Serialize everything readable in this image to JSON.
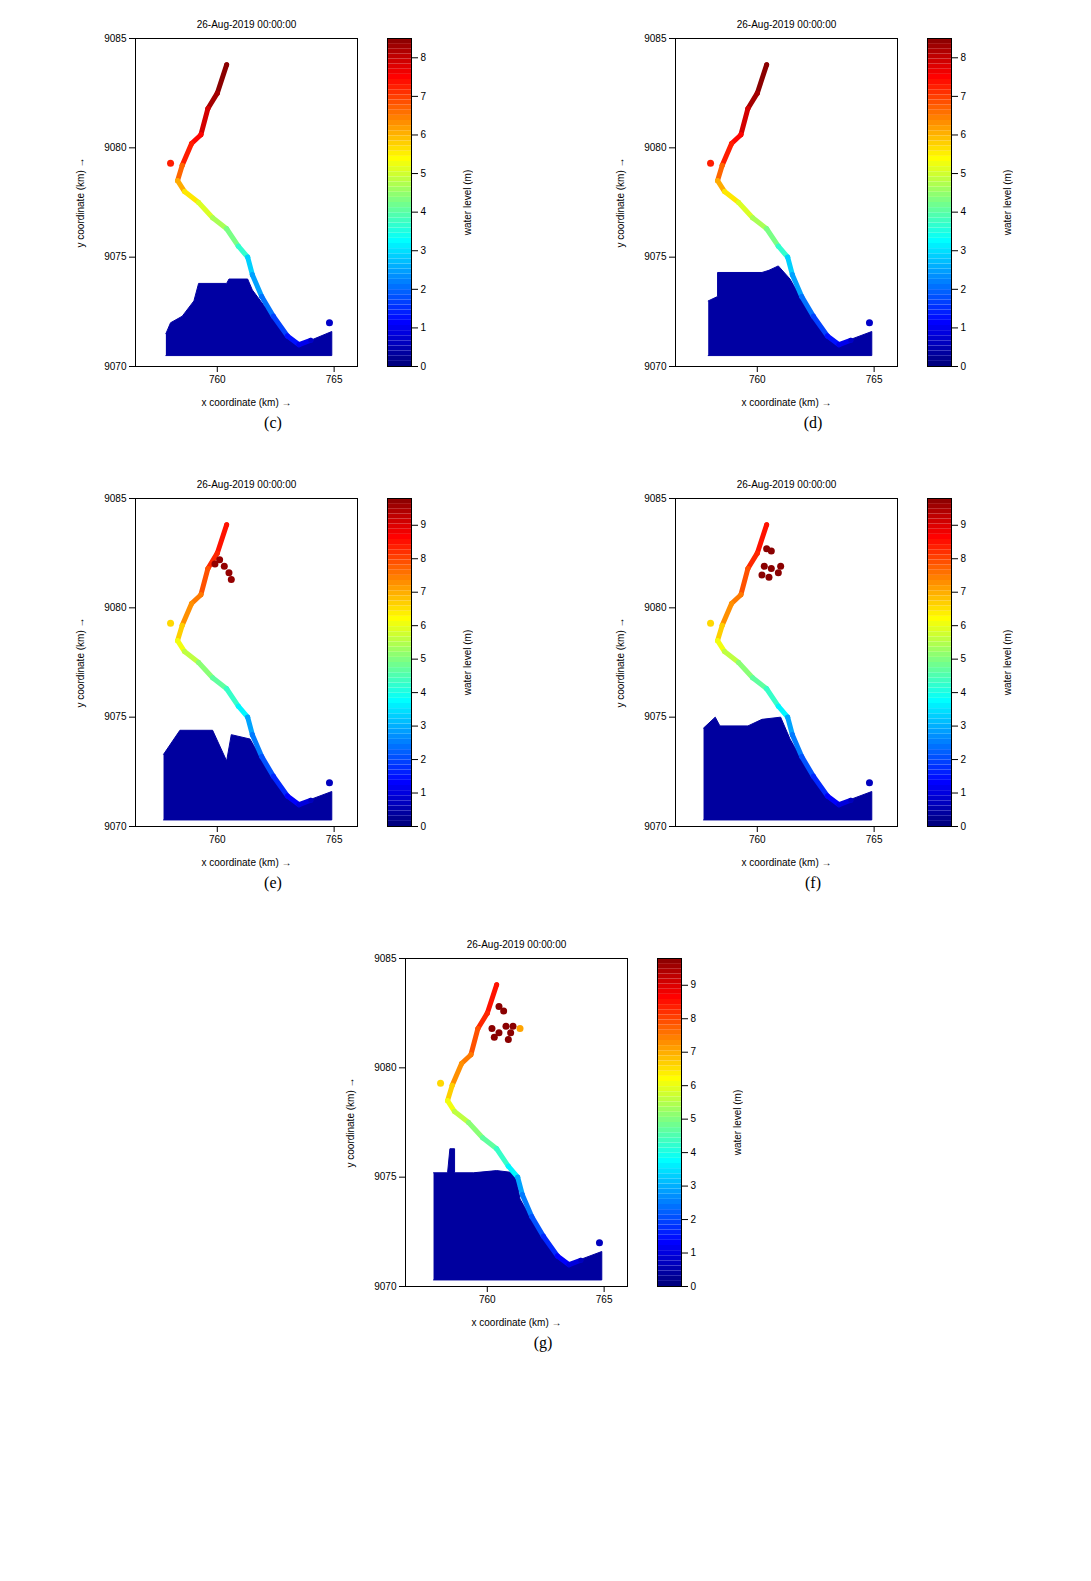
{
  "chart_data": [
    {
      "type": "scatter",
      "title": "26-Aug-2019 00:00:00",
      "caption": "(c)",
      "x_label": "x coordinate (km) →",
      "y_label": "y coordinate (km) →",
      "xlim": [
        756.5,
        766
      ],
      "xticks": [
        760,
        765
      ],
      "ylim": [
        9070,
        9085
      ],
      "yticks": [
        9070,
        9075,
        9080,
        9085
      ],
      "color_label": "water level (m)",
      "clim": [
        0,
        8.5
      ],
      "cticks": [
        0,
        1,
        2,
        3,
        4,
        5,
        6,
        7,
        8
      ],
      "river": {
        "x": [
          760.4,
          760.0,
          759.6,
          759.3,
          758.9,
          758.5,
          758.3,
          758.6,
          759.2,
          759.8,
          760.4,
          760.9,
          761.3,
          761.5,
          761.9,
          762.4,
          763.0,
          763.5,
          764.0
        ],
        "y": [
          9083.8,
          9082.5,
          9081.8,
          9080.6,
          9080.2,
          9079.2,
          9078.5,
          9078.0,
          9077.5,
          9076.8,
          9076.3,
          9075.5,
          9075.0,
          9074.2,
          9073.2,
          9072.3,
          9071.4,
          9071.0,
          9071.2
        ],
        "level": [
          8.4,
          8.2,
          7.8,
          7.4,
          7.2,
          6.6,
          6.0,
          5.5,
          5.0,
          4.6,
          4.2,
          3.6,
          2.8,
          2.4,
          2.0,
          1.6,
          1.2,
          0.9,
          0.6
        ]
      },
      "flood_areas": [
        {
          "level": 0.3,
          "x": [
            757.8,
            764.9,
            764.9,
            764.0,
            763.4,
            762.8,
            762.2,
            761.5,
            761.3,
            760.5,
            760.4,
            759.2,
            759.0,
            758.5,
            758.0,
            757.8
          ],
          "y": [
            9070.5,
            9070.5,
            9071.6,
            9071.2,
            9071.0,
            9071.6,
            9072.5,
            9073.5,
            9074.0,
            9074.0,
            9073.8,
            9073.8,
            9073.0,
            9072.3,
            9072.0,
            9071.5
          ]
        }
      ],
      "spots": {
        "x": [
          758.0,
          764.8
        ],
        "y": [
          9079.3,
          9072.0
        ],
        "level": [
          7.2,
          0.6
        ]
      }
    },
    {
      "type": "scatter",
      "title": "26-Aug-2019 00:00:00",
      "caption": "(d)",
      "x_label": "x coordinate (km) →",
      "y_label": "y coordinate (km) →",
      "xlim": [
        756.5,
        766
      ],
      "xticks": [
        760,
        765
      ],
      "ylim": [
        9070,
        9085
      ],
      "yticks": [
        9070,
        9075,
        9080,
        9085
      ],
      "color_label": "water level (m)",
      "clim": [
        0,
        8.5
      ],
      "cticks": [
        0,
        1,
        2,
        3,
        4,
        5,
        6,
        7,
        8
      ],
      "river": {
        "x": [
          760.4,
          760.0,
          759.6,
          759.3,
          758.9,
          758.5,
          758.3,
          758.6,
          759.2,
          759.8,
          760.4,
          760.9,
          761.3,
          761.5,
          761.9,
          762.4,
          763.0,
          763.5,
          764.0
        ],
        "y": [
          9083.8,
          9082.5,
          9081.8,
          9080.6,
          9080.2,
          9079.2,
          9078.5,
          9078.0,
          9077.5,
          9076.8,
          9076.3,
          9075.5,
          9075.0,
          9074.2,
          9073.2,
          9072.3,
          9071.4,
          9071.0,
          9071.2
        ],
        "level": [
          8.4,
          8.2,
          7.8,
          7.4,
          7.2,
          6.6,
          6.0,
          5.5,
          5.0,
          4.6,
          4.2,
          3.6,
          2.8,
          2.4,
          2.0,
          1.6,
          1.2,
          0.9,
          0.6
        ]
      },
      "flood_areas": [
        {
          "level": 0.3,
          "x": [
            757.9,
            764.9,
            764.9,
            763.4,
            762.2,
            761.4,
            760.9,
            760.5,
            760.2,
            758.3,
            758.3,
            757.9
          ],
          "y": [
            9070.5,
            9070.5,
            9071.6,
            9071.0,
            9072.5,
            9074.0,
            9074.6,
            9074.4,
            9074.3,
            9074.3,
            9073.2,
            9073.0
          ]
        }
      ],
      "spots": {
        "x": [
          758.0,
          764.8
        ],
        "y": [
          9079.3,
          9072.0
        ],
        "level": [
          7.2,
          0.6
        ]
      }
    },
    {
      "type": "scatter",
      "title": "26-Aug-2019 00:00:00",
      "caption": "(e)",
      "x_label": "x coordinate (km) →",
      "y_label": "y coordinate (km) →",
      "xlim": [
        756.5,
        766
      ],
      "xticks": [
        760,
        765
      ],
      "ylim": [
        9070,
        9085
      ],
      "yticks": [
        9070,
        9075,
        9080,
        9085
      ],
      "color_label": "water level (m)",
      "clim": [
        0,
        9.8
      ],
      "cticks": [
        0,
        1,
        2,
        3,
        4,
        5,
        6,
        7,
        8,
        9
      ],
      "river": {
        "x": [
          760.4,
          760.0,
          759.6,
          759.3,
          758.9,
          758.5,
          758.3,
          758.6,
          759.2,
          759.8,
          760.4,
          760.9,
          761.3,
          761.5,
          761.9,
          762.4,
          763.0,
          763.5,
          764.0
        ],
        "y": [
          9083.8,
          9082.5,
          9081.8,
          9080.6,
          9080.2,
          9079.2,
          9078.5,
          9078.0,
          9077.5,
          9076.8,
          9076.3,
          9075.5,
          9075.0,
          9074.2,
          9073.2,
          9072.3,
          9071.4,
          9071.0,
          9071.2
        ],
        "level": [
          8.4,
          8.2,
          7.8,
          7.4,
          7.2,
          6.6,
          6.0,
          5.5,
          5.0,
          4.6,
          4.2,
          3.6,
          2.8,
          2.4,
          2.0,
          1.6,
          1.2,
          0.9,
          0.6
        ]
      },
      "flood_areas": [
        {
          "level": 0.3,
          "x": [
            757.7,
            764.9,
            764.9,
            763.4,
            762.2,
            761.4,
            760.6,
            760.4,
            759.8,
            758.4,
            757.7
          ],
          "y": [
            9070.3,
            9070.3,
            9071.6,
            9071.0,
            9072.5,
            9074.0,
            9074.2,
            9073.0,
            9074.4,
            9074.4,
            9073.3
          ]
        }
      ],
      "spots": {
        "x": [
          758.0,
          764.8,
          760.1,
          760.3,
          760.5,
          760.6,
          759.9
        ],
        "y": [
          9079.3,
          9072.0,
          9082.2,
          9081.9,
          9081.6,
          9081.3,
          9082.0
        ],
        "level": [
          6.5,
          0.6,
          9.6,
          9.6,
          9.6,
          9.6,
          9.6
        ]
      }
    },
    {
      "type": "scatter",
      "title": "26-Aug-2019 00:00:00",
      "caption": "(f)",
      "x_label": "x coordinate (km) →",
      "y_label": "y coordinate (km) →",
      "xlim": [
        756.5,
        766
      ],
      "xticks": [
        760,
        765
      ],
      "ylim": [
        9070,
        9085
      ],
      "yticks": [
        9070,
        9075,
        9080,
        9085
      ],
      "color_label": "water level (m)",
      "clim": [
        0,
        9.8
      ],
      "cticks": [
        0,
        1,
        2,
        3,
        4,
        5,
        6,
        7,
        8,
        9
      ],
      "river": {
        "x": [
          760.4,
          760.0,
          759.6,
          759.3,
          758.9,
          758.5,
          758.3,
          758.6,
          759.2,
          759.8,
          760.4,
          760.9,
          761.3,
          761.5,
          761.9,
          762.4,
          763.0,
          763.5,
          764.0
        ],
        "y": [
          9083.8,
          9082.5,
          9081.8,
          9080.6,
          9080.2,
          9079.2,
          9078.5,
          9078.0,
          9077.5,
          9076.8,
          9076.3,
          9075.5,
          9075.0,
          9074.2,
          9073.2,
          9072.3,
          9071.4,
          9071.0,
          9071.2
        ],
        "level": [
          8.4,
          8.2,
          7.8,
          7.4,
          7.2,
          6.6,
          6.0,
          5.5,
          5.0,
          4.6,
          4.2,
          3.6,
          2.8,
          2.4,
          2.0,
          1.6,
          1.2,
          0.9,
          0.6
        ]
      },
      "flood_areas": [
        {
          "level": 0.3,
          "x": [
            757.7,
            764.9,
            764.9,
            763.4,
            762.2,
            761.4,
            761.0,
            760.2,
            759.6,
            758.4,
            758.2,
            757.7
          ],
          "y": [
            9070.3,
            9070.3,
            9071.6,
            9071.0,
            9072.5,
            9074.0,
            9075.0,
            9074.9,
            9074.6,
            9074.6,
            9075.0,
            9074.5
          ]
        }
      ],
      "spots": {
        "x": [
          758.0,
          764.8,
          760.4,
          760.6,
          760.3,
          760.6,
          760.9,
          760.5,
          760.2,
          761.0
        ],
        "y": [
          9079.3,
          9072.0,
          9082.7,
          9082.6,
          9081.9,
          9081.8,
          9081.6,
          9081.4,
          9081.5,
          9081.9
        ],
        "level": [
          6.5,
          0.6,
          9.7,
          9.7,
          9.7,
          9.7,
          9.7,
          9.7,
          9.7,
          9.7
        ]
      }
    },
    {
      "type": "scatter",
      "title": "26-Aug-2019 00:00:00",
      "caption": "(g)",
      "x_label": "x coordinate (km) →",
      "y_label": "y coordinate (km) →",
      "xlim": [
        756.5,
        766
      ],
      "xticks": [
        760,
        765
      ],
      "ylim": [
        9070,
        9085
      ],
      "yticks": [
        9070,
        9075,
        9080,
        9085
      ],
      "color_label": "water level (m)",
      "clim": [
        0,
        9.8
      ],
      "cticks": [
        0,
        1,
        2,
        3,
        4,
        5,
        6,
        7,
        8,
        9
      ],
      "river": {
        "x": [
          760.4,
          760.0,
          759.6,
          759.3,
          758.9,
          758.5,
          758.3,
          758.6,
          759.2,
          759.8,
          760.4,
          760.9,
          761.3,
          761.5,
          761.9,
          762.4,
          763.0,
          763.5,
          764.0
        ],
        "y": [
          9083.8,
          9082.5,
          9081.8,
          9080.6,
          9080.2,
          9079.2,
          9078.5,
          9078.0,
          9077.5,
          9076.8,
          9076.3,
          9075.5,
          9075.0,
          9074.2,
          9073.2,
          9072.3,
          9071.4,
          9071.0,
          9071.2
        ],
        "level": [
          8.4,
          8.2,
          7.8,
          7.4,
          7.2,
          6.6,
          6.0,
          5.5,
          5.0,
          4.6,
          4.2,
          3.6,
          2.8,
          2.4,
          2.0,
          1.6,
          1.2,
          0.9,
          0.6
        ]
      },
      "flood_areas": [
        {
          "level": 0.3,
          "x": [
            757.7,
            764.9,
            764.9,
            763.4,
            762.2,
            761.4,
            761.2,
            760.4,
            759.4,
            758.6,
            758.6,
            758.4,
            758.3,
            757.7
          ],
          "y": [
            9070.3,
            9070.3,
            9071.6,
            9071.0,
            9072.5,
            9074.0,
            9075.2,
            9075.3,
            9075.2,
            9075.2,
            9076.3,
            9076.3,
            9075.2,
            9075.2
          ]
        }
      ],
      "spots": {
        "x": [
          758.0,
          764.8,
          760.5,
          760.7,
          760.2,
          760.5,
          760.8,
          761.0,
          760.3,
          761.1,
          760.9,
          761.4
        ],
        "y": [
          9079.3,
          9072.0,
          9082.8,
          9082.6,
          9081.8,
          9081.6,
          9081.9,
          9081.6,
          9081.4,
          9081.9,
          9081.3,
          9081.8
        ],
        "level": [
          6.5,
          0.6,
          9.7,
          9.7,
          9.7,
          9.7,
          9.7,
          9.7,
          9.7,
          9.7,
          9.7,
          7.0
        ]
      }
    }
  ]
}
